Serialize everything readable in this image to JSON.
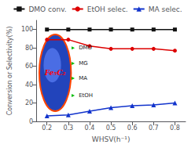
{
  "chart_data": {
    "type": "line",
    "x": [
      0.2,
      0.3,
      0.4,
      0.5,
      0.6,
      0.7,
      0.8
    ],
    "series": [
      {
        "name": "DMO conv.",
        "color": "#111111",
        "marker": "square",
        "values": [
          100,
          100,
          100,
          100,
          100,
          100,
          100
        ]
      },
      {
        "name": "EtOH selec.",
        "color": "#dd0000",
        "marker": "circle",
        "values": [
          89,
          89,
          82,
          79,
          79,
          79,
          77
        ]
      },
      {
        "name": "MA selec.",
        "color": "#1133cc",
        "marker": "triangle",
        "values": [
          6,
          7,
          11,
          15,
          17,
          18,
          20
        ]
      }
    ],
    "xlabel": "WHSV(h⁻¹)",
    "ylabel": "Conversion or Selectivity(%)",
    "xlim": [
      0.15,
      0.85
    ],
    "ylim": [
      0,
      110
    ],
    "xticks": [
      0.2,
      0.3,
      0.4,
      0.5,
      0.6,
      0.7,
      0.8
    ],
    "yticks": [
      0,
      20,
      40,
      60,
      80,
      100
    ],
    "grid": false,
    "legend": "top",
    "annotations": [
      "Fe₅C₂",
      "DMO",
      "MG",
      "MA",
      "EtOH"
    ]
  }
}
